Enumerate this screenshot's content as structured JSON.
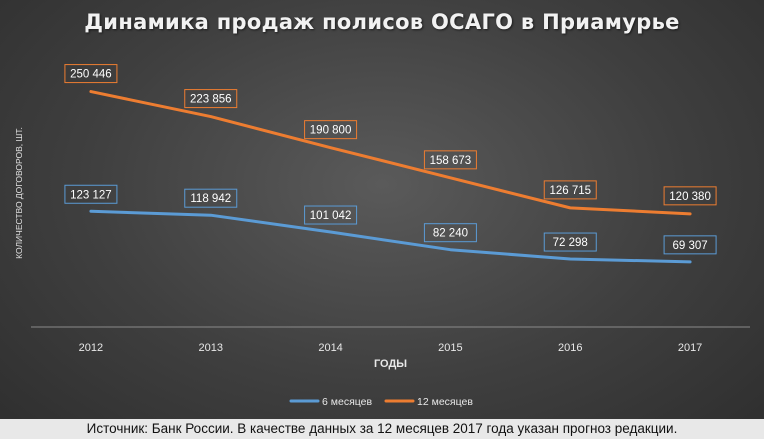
{
  "chart_data": {
    "type": "line",
    "title": "Динамика продаж полисов ОСАГО в Приамурье",
    "xlabel": "ГОДЫ",
    "ylabel": "КОЛИЧЕСТВО ДОГОВОРОВ, ШТ.",
    "categories": [
      "2012",
      "2013",
      "2014",
      "2015",
      "2016",
      "2017"
    ],
    "ylim": [
      0,
      300000
    ],
    "grid": false,
    "legend_position": "bottom",
    "series": [
      {
        "name": "6 месяцев",
        "color": "#5b9bd5",
        "values": [
          123127,
          118942,
          101042,
          82240,
          72298,
          69307
        ],
        "labels": [
          "123 127",
          "118 942",
          "101 042",
          "82 240",
          "72 298",
          "69 307"
        ]
      },
      {
        "name": "12 месяцев",
        "color": "#ed7d31",
        "values": [
          250446,
          223856,
          190800,
          158673,
          126715,
          120380
        ],
        "labels": [
          "250 446",
          "223 856",
          "190 800",
          "158 673",
          "126 715",
          "120 380"
        ]
      }
    ]
  },
  "source_note": "Источник: Банк России. В качестве данных за 12 месяцев 2017 года указан прогноз редакции."
}
